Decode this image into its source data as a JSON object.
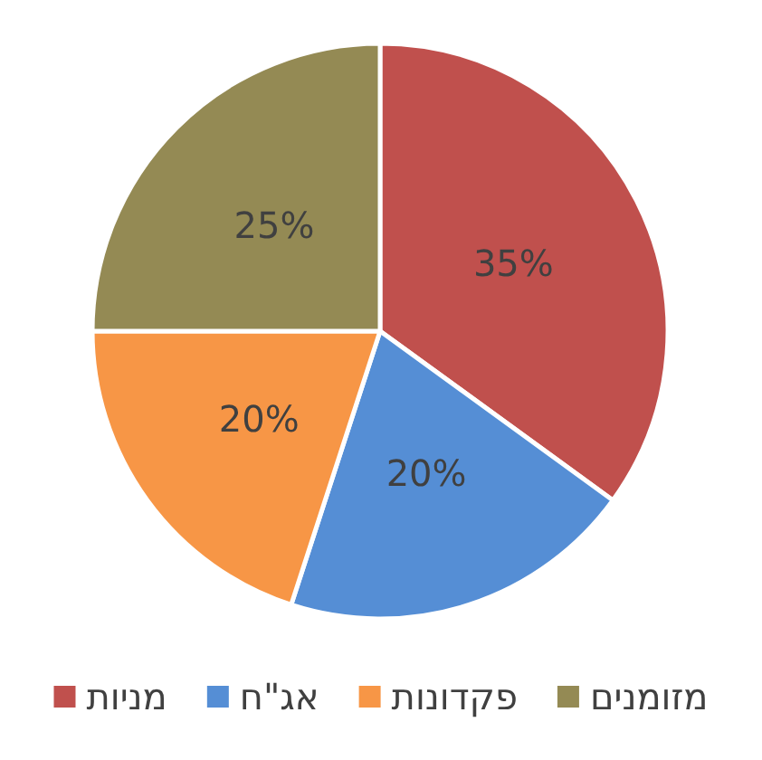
{
  "chart_data": {
    "type": "pie",
    "categories": [
      "מניות",
      "אג\"ח",
      "פקדונות",
      "מזומנים"
    ],
    "values": [
      35,
      20,
      20,
      25
    ],
    "colors": [
      "#c0504d",
      "#558ed5",
      "#f79646",
      "#948a54"
    ],
    "value_labels": [
      "35%",
      "20%",
      "20%",
      "25%"
    ],
    "legend": "bottom"
  }
}
